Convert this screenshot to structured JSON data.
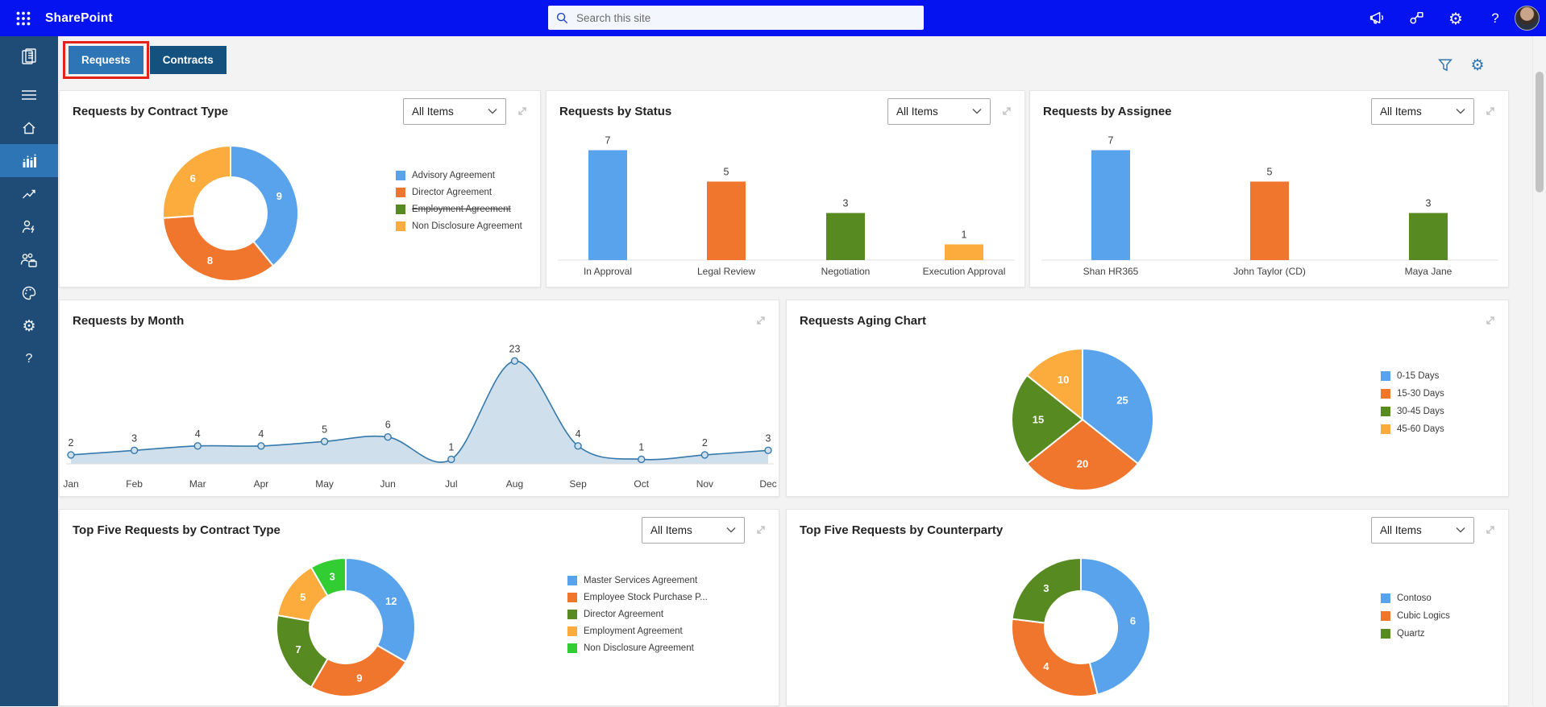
{
  "header": {
    "app_title": "SharePoint",
    "search_placeholder": "Search this site",
    "icons": {
      "app_launcher": "waffle-grid",
      "announcement": "megaphone",
      "connections": "share-nodes",
      "settings": "gear",
      "help": "question-mark",
      "avatar": "user-photo"
    }
  },
  "sidebar": {
    "items": [
      {
        "id": "app-logo",
        "icon": "clipboard"
      },
      {
        "id": "menu",
        "icon": "hamburger"
      },
      {
        "id": "home",
        "icon": "home"
      },
      {
        "id": "dashboard",
        "icon": "bar-chart",
        "active": true
      },
      {
        "id": "reports",
        "icon": "line-chart"
      },
      {
        "id": "user-actions",
        "icon": "person-bolt"
      },
      {
        "id": "teams",
        "icon": "people-briefcase"
      },
      {
        "id": "theme",
        "icon": "palette"
      },
      {
        "id": "settings",
        "icon": "gear"
      },
      {
        "id": "help",
        "icon": "question-mark"
      }
    ]
  },
  "tabs": [
    {
      "label": "Requests",
      "active": true,
      "highlighted": true
    },
    {
      "label": "Contracts",
      "active": false
    }
  ],
  "content_actions": {
    "filter_icon": "funnel",
    "settings_icon": "gear"
  },
  "colors": {
    "blue": "#58A3EC",
    "orange": "#F1762D",
    "dark_green": "#578A21",
    "amber": "#FBAC3D",
    "bright_green": "#32CD32",
    "line_stroke": "#3579AC",
    "area_fill": "#CFDFEC",
    "topbar": "#0413F0",
    "sidebar": "#1E4C77",
    "active_blue": "#2E75B5",
    "annotation_red": "#E3231A"
  },
  "chart_data": [
    {
      "type": "donut",
      "title": "Requests by Contract Type",
      "filter": "All Items",
      "slices": [
        {
          "label": "Advisory Agreement",
          "value": 9,
          "color": "#58A3EC"
        },
        {
          "label": "Director Agreement",
          "value": 8,
          "color": "#F1762D"
        },
        {
          "label": "Non Disclosure Agreement",
          "value": 6,
          "color": "#FBAC3D"
        }
      ],
      "legend": [
        {
          "label": "Advisory Agreement",
          "color": "#58A3EC",
          "struck": false
        },
        {
          "label": "Director Agreement",
          "color": "#F1762D",
          "struck": false
        },
        {
          "label": "Employment Agreement",
          "color": "#578A21",
          "struck": true
        },
        {
          "label": "Non Disclosure Agreement",
          "color": "#FBAC3D",
          "struck": false
        }
      ]
    },
    {
      "type": "bar",
      "title": "Requests by Status",
      "filter": "All Items",
      "categories": [
        "In Approval",
        "Legal Review",
        "Negotiation",
        "Execution Approval"
      ],
      "values": [
        7,
        5,
        3,
        1
      ],
      "bar_colors": [
        "#58A3EC",
        "#F1762D",
        "#578A21",
        "#FBAC3D"
      ],
      "ylim": [
        0,
        8
      ]
    },
    {
      "type": "bar",
      "title": "Requests by Assignee",
      "filter": "All Items",
      "categories": [
        "Shan HR365",
        "John Taylor (CD)",
        "Maya Jane"
      ],
      "values": [
        7,
        5,
        3
      ],
      "bar_colors": [
        "#58A3EC",
        "#F1762D",
        "#578A21"
      ],
      "ylim": [
        0,
        8
      ]
    },
    {
      "type": "area",
      "title": "Requests by Month",
      "x": [
        "Jan",
        "Feb",
        "Mar",
        "Apr",
        "May",
        "Jun",
        "Jul",
        "Aug",
        "Sep",
        "Oct",
        "Nov",
        "Dec"
      ],
      "values": [
        2,
        3,
        4,
        4,
        5,
        6,
        1,
        23,
        4,
        1,
        2,
        3
      ],
      "line_color": "#3579AC",
      "fill_color": "#CFDFEC",
      "ylim": [
        0,
        25
      ]
    },
    {
      "type": "pie",
      "title": "Requests Aging Chart",
      "slices": [
        {
          "label": "0-15 Days",
          "value": 25,
          "color": "#58A3EC"
        },
        {
          "label": "15-30 Days",
          "value": 20,
          "color": "#F1762D"
        },
        {
          "label": "30-45 Days",
          "value": 15,
          "color": "#578A21"
        },
        {
          "label": "45-60 Days",
          "value": 10,
          "color": "#FBAC3D"
        }
      ],
      "legend": [
        {
          "label": "0-15 Days",
          "color": "#58A3EC",
          "struck": false
        },
        {
          "label": "15-30 Days",
          "color": "#F1762D",
          "struck": false
        },
        {
          "label": "30-45 Days",
          "color": "#578A21",
          "struck": false
        },
        {
          "label": "45-60 Days",
          "color": "#FBAC3D",
          "struck": false
        }
      ]
    },
    {
      "type": "donut",
      "title": "Top Five Requests by Contract Type",
      "filter": "All Items",
      "slices": [
        {
          "label": "Master Services Agreement",
          "value": 12,
          "color": "#58A3EC"
        },
        {
          "label": "Employee Stock Purchase P...",
          "value": 9,
          "color": "#F1762D"
        },
        {
          "label": "Director Agreement",
          "value": 7,
          "color": "#578A21"
        },
        {
          "label": "Employment Agreement",
          "value": 5,
          "color": "#FBAC3D"
        },
        {
          "label": "Non Disclosure Agreement",
          "value": 3,
          "color": "#32CD32"
        }
      ],
      "legend": [
        {
          "label": "Master Services Agreement",
          "color": "#58A3EC",
          "struck": false
        },
        {
          "label": "Employee Stock Purchase P...",
          "color": "#F1762D",
          "struck": false
        },
        {
          "label": "Director Agreement",
          "color": "#578A21",
          "struck": false
        },
        {
          "label": "Employment Agreement",
          "color": "#FBAC3D",
          "struck": false
        },
        {
          "label": "Non Disclosure Agreement",
          "color": "#32CD32",
          "struck": false
        }
      ]
    },
    {
      "type": "donut",
      "title": "Top Five Requests by Counterparty",
      "filter": "All Items",
      "slices": [
        {
          "label": "Contoso",
          "value": 6,
          "color": "#58A3EC"
        },
        {
          "label": "Cubic Logics",
          "value": 4,
          "color": "#F1762D"
        },
        {
          "label": "Quartz",
          "value": 3,
          "color": "#578A21"
        }
      ],
      "legend": [
        {
          "label": "Contoso",
          "color": "#58A3EC",
          "struck": false
        },
        {
          "label": "Cubic Logics",
          "color": "#F1762D",
          "struck": false
        },
        {
          "label": "Quartz",
          "color": "#578A21",
          "struck": false
        }
      ]
    }
  ]
}
